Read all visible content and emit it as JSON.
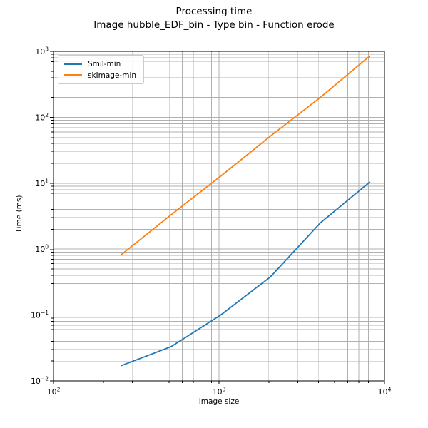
{
  "chart_data": {
    "type": "line",
    "title": "Processing time",
    "subtitle": "Image hubble_EDF_bin - Type bin - Function erode",
    "xlabel": "Image size",
    "ylabel": "Time (ms)",
    "x_scale": "log",
    "y_scale": "log",
    "xlim": [
      100,
      10000
    ],
    "ylim": [
      0.01,
      1000
    ],
    "grid": "both",
    "grid_color": "#b0b0b0",
    "legend_position": "upper left",
    "x_tick_exponents": [
      2,
      3,
      4
    ],
    "y_tick_exponents": [
      -2,
      -1,
      0,
      1,
      2,
      3
    ],
    "x": [
      256,
      512,
      1024,
      2048,
      4096,
      8192
    ],
    "series": [
      {
        "name": "Smil-min",
        "color": "#1f77b4",
        "values": [
          0.017,
          0.033,
          0.1,
          0.38,
          2.5,
          10.5
        ]
      },
      {
        "name": "skImage-min",
        "color": "#ff7f0e",
        "values": [
          0.82,
          3.3,
          12.8,
          52,
          200,
          860
        ]
      }
    ]
  }
}
